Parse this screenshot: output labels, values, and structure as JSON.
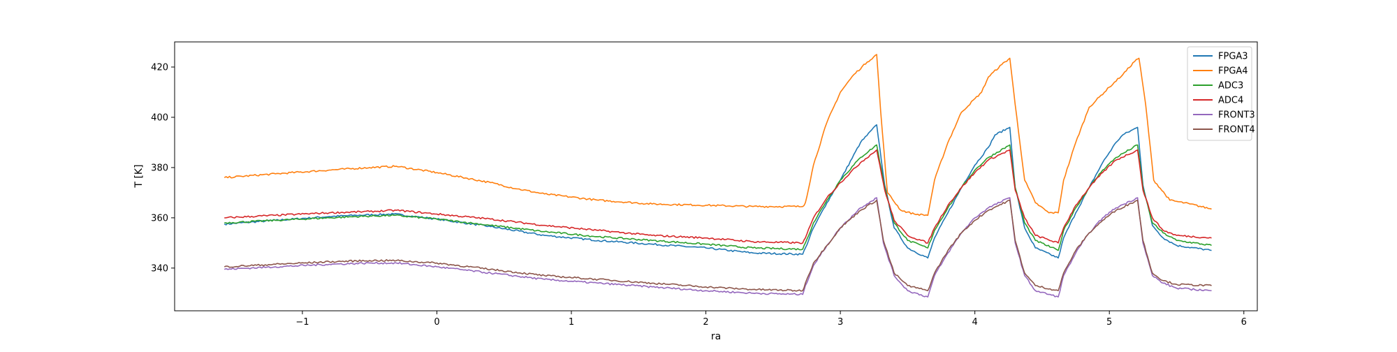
{
  "chart_data": {
    "type": "line",
    "title": "",
    "xlabel": "ra",
    "ylabel": "T [K]",
    "xlim": [
      -1.95,
      6.1
    ],
    "ylim": [
      323,
      430
    ],
    "xticks": [
      -1,
      0,
      1,
      2,
      3,
      4,
      5,
      6
    ],
    "xtick_labels": [
      "−1",
      "0",
      "1",
      "2",
      "3",
      "4",
      "5",
      "6"
    ],
    "yticks": [
      340,
      360,
      380,
      400,
      420
    ],
    "ytick_labels": [
      "340",
      "360",
      "380",
      "400",
      "420"
    ],
    "grid": false,
    "legend_position": "top-right",
    "series": [
      {
        "name": "FPGA3",
        "color": "#1f77b4",
        "x": [
          -1.58,
          -1.2,
          -0.8,
          -0.6,
          -0.32,
          0,
          0.4,
          0.8,
          1.2,
          1.6,
          2.0,
          2.35,
          2.72,
          2.74,
          2.8,
          2.9,
          3.0,
          3.15,
          3.27,
          3.33,
          3.4,
          3.5,
          3.65,
          3.7,
          3.8,
          3.9,
          4.0,
          4.1,
          4.15,
          4.26,
          4.3,
          4.37,
          4.45,
          4.62,
          4.66,
          4.75,
          4.85,
          4.95,
          5.05,
          5.1,
          5.21,
          5.25,
          5.32,
          5.4,
          5.5,
          5.76
        ],
        "y": [
          357.5,
          359,
          360.5,
          361,
          361.5,
          359.5,
          356.5,
          353,
          351,
          349.5,
          348,
          346,
          345.5,
          348,
          356,
          366,
          375,
          390,
          397,
          373,
          356,
          348,
          344,
          352,
          362,
          372,
          381,
          388,
          393,
          396,
          372,
          356,
          348,
          344,
          352,
          362,
          372,
          382,
          390,
          393,
          396,
          373,
          357,
          352,
          349,
          347
        ]
      },
      {
        "name": "FPGA4",
        "color": "#ff7f0e",
        "x": [
          -1.58,
          -1.2,
          -0.8,
          -0.5,
          -0.3,
          0,
          0.4,
          0.6,
          0.8,
          1.2,
          1.6,
          2.0,
          2.35,
          2.72,
          2.74,
          2.8,
          2.9,
          3.0,
          3.1,
          3.2,
          3.27,
          3.3,
          3.35,
          3.45,
          3.55,
          3.65,
          3.7,
          3.8,
          3.9,
          4.05,
          4.1,
          4.2,
          4.26,
          4.3,
          4.37,
          4.45,
          4.55,
          4.62,
          4.66,
          4.75,
          4.85,
          5.0,
          5.1,
          5.2,
          5.22,
          5.27,
          5.33,
          5.45,
          5.6,
          5.76
        ],
        "y": [
          376,
          377.5,
          379,
          380,
          380.5,
          378,
          374,
          371.5,
          369.5,
          367,
          365.5,
          365,
          364.5,
          364.5,
          366,
          381,
          398,
          410,
          417,
          422,
          425,
          402,
          370,
          363,
          361.5,
          361,
          375,
          390,
          402,
          410,
          416,
          421,
          423.5,
          405,
          375,
          366,
          362,
          362,
          375,
          390,
          404,
          412,
          417,
          423,
          423.5,
          405,
          375,
          367,
          365.5,
          363.5
        ]
      },
      {
        "name": "ADC3",
        "color": "#2ca02c",
        "x": [
          -1.58,
          -1.2,
          -0.8,
          -0.6,
          -0.32,
          0,
          0.4,
          0.8,
          1.2,
          1.6,
          2.0,
          2.35,
          2.72,
          2.74,
          2.8,
          2.9,
          3.0,
          3.15,
          3.27,
          3.33,
          3.4,
          3.5,
          3.65,
          3.7,
          3.8,
          3.9,
          4.0,
          4.1,
          4.26,
          4.3,
          4.37,
          4.45,
          4.62,
          4.66,
          4.75,
          4.85,
          4.95,
          5.05,
          5.21,
          5.25,
          5.32,
          5.4,
          5.5,
          5.76
        ],
        "y": [
          358,
          359,
          360,
          360.5,
          361,
          359.5,
          357,
          354.5,
          352.5,
          351,
          349.5,
          348,
          347.5,
          350,
          358,
          367,
          375,
          384,
          389,
          372,
          358,
          351,
          348,
          355,
          364,
          372,
          379,
          384,
          389,
          372,
          358,
          351,
          347,
          355,
          364,
          372,
          379,
          384,
          389,
          372,
          358,
          354,
          351,
          349
        ]
      },
      {
        "name": "ADC4",
        "color": "#d62728",
        "x": [
          -1.58,
          -1.2,
          -0.8,
          -0.5,
          -0.3,
          0,
          0.4,
          0.8,
          1.2,
          1.6,
          2.0,
          2.35,
          2.72,
          2.74,
          2.8,
          2.9,
          3.0,
          3.15,
          3.27,
          3.33,
          3.4,
          3.5,
          3.65,
          3.7,
          3.8,
          3.9,
          4.0,
          4.1,
          4.26,
          4.3,
          4.37,
          4.45,
          4.62,
          4.66,
          4.75,
          4.85,
          4.95,
          5.05,
          5.21,
          5.25,
          5.32,
          5.4,
          5.5,
          5.76
        ],
        "y": [
          360,
          361,
          362,
          362.5,
          363,
          361.5,
          359.5,
          357,
          355,
          353,
          352,
          350.5,
          350,
          352,
          360,
          368,
          374,
          382,
          387,
          371,
          359,
          353,
          350,
          356,
          365,
          372,
          378,
          383,
          387,
          371,
          360,
          353,
          350,
          356,
          365,
          372,
          378,
          383,
          387,
          371,
          360,
          355,
          353,
          352
        ]
      },
      {
        "name": "FRONT3",
        "color": "#9467bd",
        "x": [
          -1.58,
          -1.2,
          -0.8,
          -0.5,
          -0.3,
          0,
          0.4,
          0.8,
          1.2,
          1.6,
          2.0,
          2.35,
          2.72,
          2.74,
          2.8,
          2.9,
          3.0,
          3.15,
          3.27,
          3.32,
          3.4,
          3.5,
          3.65,
          3.7,
          3.8,
          3.9,
          4.0,
          4.1,
          4.26,
          4.3,
          4.37,
          4.45,
          4.62,
          4.66,
          4.75,
          4.85,
          4.95,
          5.05,
          5.21,
          5.25,
          5.32,
          5.4,
          5.5,
          5.76
        ],
        "y": [
          339.5,
          340.5,
          341.5,
          342,
          342,
          340.5,
          338,
          335.5,
          334,
          332.5,
          331,
          330,
          329.5,
          333,
          341,
          349,
          356,
          364,
          368,
          350,
          337,
          331,
          328.5,
          337,
          346,
          354,
          360,
          364,
          368,
          350,
          337,
          331,
          328.5,
          337,
          346,
          354,
          360,
          364,
          368,
          350,
          337,
          334,
          332,
          331
        ]
      },
      {
        "name": "FRONT4",
        "color": "#8c564b",
        "x": [
          -1.58,
          -1.2,
          -0.8,
          -0.5,
          -0.3,
          0,
          0.4,
          0.8,
          1.2,
          1.6,
          2.0,
          2.35,
          2.72,
          2.74,
          2.8,
          2.9,
          3.0,
          3.15,
          3.27,
          3.32,
          3.4,
          3.5,
          3.65,
          3.7,
          3.8,
          3.9,
          4.0,
          4.1,
          4.26,
          4.3,
          4.37,
          4.45,
          4.62,
          4.66,
          4.75,
          4.85,
          4.95,
          5.05,
          5.21,
          5.25,
          5.32,
          5.4,
          5.5,
          5.76
        ],
        "y": [
          340.5,
          341.5,
          342.5,
          343,
          343,
          342,
          339.5,
          337,
          335.5,
          334,
          332.5,
          331.5,
          331,
          334,
          342,
          349,
          356,
          363,
          367,
          351,
          338,
          333,
          331,
          338,
          347,
          354,
          359,
          363,
          367,
          351,
          338,
          333,
          331,
          338,
          347,
          354,
          359,
          363,
          367,
          351,
          338,
          335,
          333.5,
          333
        ]
      }
    ]
  }
}
